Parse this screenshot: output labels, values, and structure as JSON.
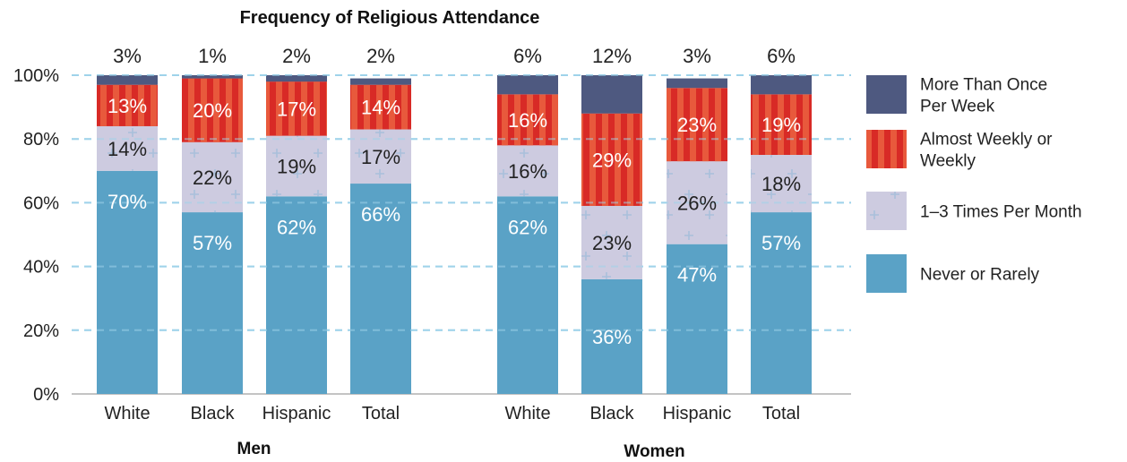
{
  "chart_data": {
    "type": "bar",
    "stacked": true,
    "title": "Frequency of Religious Attendance",
    "ylim": [
      0,
      100
    ],
    "yticks": [
      "0%",
      "20%",
      "40%",
      "60%",
      "80%",
      "100%"
    ],
    "groups": [
      {
        "name": "Men",
        "categories": [
          "White",
          "Black",
          "Hispanic",
          "Total"
        ]
      },
      {
        "name": "Women",
        "categories": [
          "White",
          "Black",
          "Hispanic",
          "Total"
        ]
      }
    ],
    "series": [
      {
        "name": "Never or Rarely",
        "color": "#5aa2c6",
        "values": [
          70,
          57,
          62,
          66,
          62,
          36,
          47,
          57
        ],
        "labels": [
          "70%",
          "57%",
          "62%",
          "66%",
          "62%",
          "36%",
          "47%",
          "57%"
        ]
      },
      {
        "name": "1–3 Times Per Month",
        "color": "#cdcbe0",
        "values": [
          14,
          22,
          19,
          17,
          16,
          23,
          26,
          18
        ],
        "labels": [
          "14%",
          "22%",
          "19%",
          "17%",
          "16%",
          "23%",
          "26%",
          "18%"
        ]
      },
      {
        "name": "Almost Weekly or Weekly",
        "color": "#d82a26",
        "values": [
          13,
          20,
          17,
          14,
          16,
          29,
          23,
          19
        ],
        "labels": [
          "13%",
          "20%",
          "17%",
          "14%",
          "16%",
          "29%",
          "23%",
          "19%"
        ]
      },
      {
        "name": "More Than Once Per Week",
        "color": "#4e5980",
        "values": [
          3,
          1,
          2,
          2,
          6,
          12,
          3,
          6
        ],
        "labels": [
          "3%",
          "1%",
          "2%",
          "2%",
          "6%",
          "12%",
          "3%",
          "6%"
        ]
      }
    ],
    "legend": {
      "position": "right",
      "order": [
        {
          "series": 3,
          "lines": [
            "More Than Once",
            "Per Week"
          ]
        },
        {
          "series": 2,
          "lines": [
            "Almost Weekly or",
            "Weekly"
          ]
        },
        {
          "series": 1,
          "lines": [
            "1–3 Times Per Month"
          ]
        },
        {
          "series": 0,
          "lines": [
            "Never or Rarely"
          ]
        }
      ]
    },
    "grid": true
  }
}
